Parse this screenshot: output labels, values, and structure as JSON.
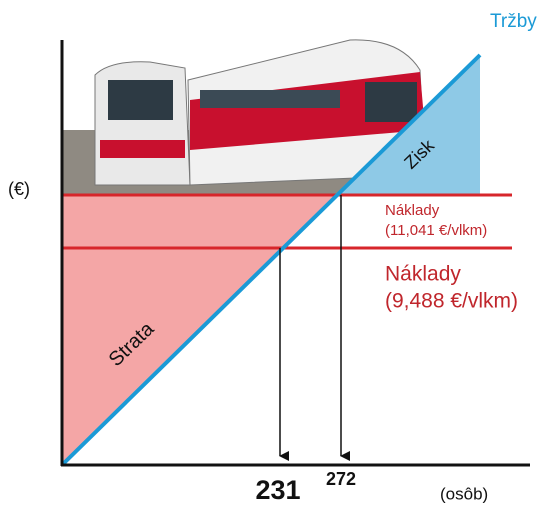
{
  "axis_labels": {
    "y": "(€)",
    "x": "(osôb)"
  },
  "revenue": {
    "label": "Tržby"
  },
  "costs": [
    {
      "label": "Náklady",
      "rate": "(11,041 €/vlkm)"
    },
    {
      "label": "Náklady",
      "rate": "(9,488 €/vlkm)"
    }
  ],
  "regions": {
    "profit": "Zisk",
    "loss": "Strata"
  },
  "break_even": {
    "low": "231",
    "high": "272"
  }
}
